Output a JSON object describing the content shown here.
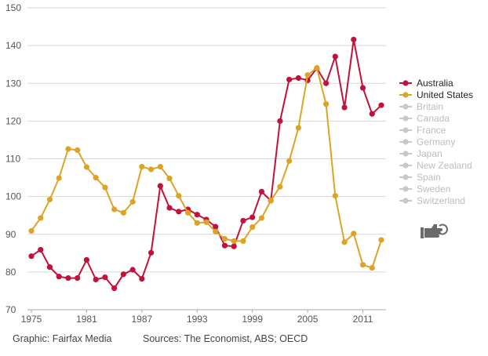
{
  "chart_data": {
    "type": "line",
    "ylim": [
      70,
      150
    ],
    "y_ticks": [
      70,
      80,
      90,
      100,
      110,
      120,
      130,
      140,
      150
    ],
    "xlim": [
      1975,
      2013
    ],
    "x_ticks": [
      1975,
      1981,
      1987,
      1993,
      1999,
      2005,
      2011
    ],
    "grid": true,
    "legend_position": "right",
    "x": [
      1975,
      1976,
      1977,
      1978,
      1979,
      1980,
      1981,
      1982,
      1983,
      1984,
      1985,
      1986,
      1987,
      1988,
      1989,
      1990,
      1991,
      1992,
      1993,
      1994,
      1995,
      1996,
      1997,
      1998,
      1999,
      2000,
      2001,
      2002,
      2003,
      2004,
      2005,
      2006,
      2007,
      2008,
      2009,
      2010,
      2011,
      2012,
      2013
    ],
    "series": [
      {
        "name": "Australia",
        "color": "#c2113a",
        "values": [
          84.2,
          85.9,
          81.3,
          78.8,
          78.4,
          78.4,
          83.2,
          78,
          78.6,
          75.7,
          79.4,
          80.6,
          78.2,
          85.1,
          102.8,
          97,
          96,
          96.6,
          95.2,
          93.9,
          92,
          87,
          86.8,
          93.6,
          94.5,
          101.3,
          98.9,
          120,
          131,
          131.4,
          130.8,
          134,
          130,
          137.1,
          123.6,
          141.6,
          128.8,
          121.9,
          124.2
        ]
      },
      {
        "name": "United States",
        "color": "#dda326",
        "values": [
          90.9,
          94.3,
          99.2,
          104.9,
          112.6,
          112.3,
          107.8,
          105,
          102.4,
          96.6,
          95.7,
          98.6,
          107.9,
          107.2,
          107.9,
          104.8,
          100.2,
          95.7,
          93,
          93.2,
          90.7,
          88.8,
          88.2,
          88.2,
          91.9,
          94.3,
          98.9,
          102.6,
          109.4,
          118.2,
          132.2,
          134.1,
          124.5,
          100.2,
          87.9,
          90.2,
          81.9,
          81.1,
          88.5
        ]
      }
    ],
    "inactive_series_color": "#c8c8c8",
    "inactive_series": [
      "Britain",
      "Canada",
      "France",
      "Germany",
      "Japan",
      "New Zealand",
      "Spain",
      "Sweden",
      "Switzerland"
    ]
  },
  "footer": {
    "credit": "Graphic: Fairfax Media",
    "sources": "Sources: The Economist, ABS; OECD"
  },
  "icons": {
    "reset": "pointing-hand-reset-icon"
  }
}
